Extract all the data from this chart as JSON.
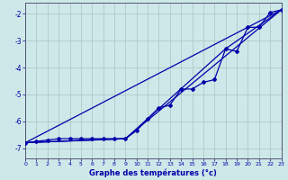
{
  "title": "",
  "xlabel": "Graphe des températures (°c)",
  "ylabel": "",
  "bg_color": "#cce8e8",
  "grid_color": "#b0c8c8",
  "line_color": "#0000aa",
  "xlim": [
    0,
    23
  ],
  "ylim": [
    -7.4,
    -1.6
  ],
  "yticks": [
    -7,
    -6,
    -5,
    -4,
    -3,
    -2
  ],
  "xticks": [
    0,
    1,
    2,
    3,
    4,
    5,
    6,
    7,
    8,
    9,
    10,
    11,
    12,
    13,
    14,
    15,
    16,
    17,
    18,
    19,
    20,
    21,
    22,
    23
  ],
  "line1_x": [
    0,
    1,
    2,
    3,
    4,
    5,
    6,
    7,
    8,
    9,
    10,
    11,
    12,
    13,
    14,
    15,
    16,
    17,
    18,
    19,
    20,
    21,
    22,
    23
  ],
  "line1_y": [
    -6.8,
    -6.75,
    -6.7,
    -6.65,
    -6.65,
    -6.65,
    -6.65,
    -6.65,
    -6.65,
    -6.65,
    -6.35,
    -5.9,
    -5.5,
    -5.4,
    -4.8,
    -4.8,
    -4.55,
    -4.45,
    -3.3,
    -3.4,
    -2.5,
    -2.5,
    -1.95,
    -1.85
  ],
  "line2_x": [
    0,
    23
  ],
  "line2_y": [
    -6.8,
    -1.85
  ],
  "line3_x": [
    0,
    9,
    23
  ],
  "line3_y": [
    -6.8,
    -6.65,
    -1.85
  ],
  "line4_x": [
    0,
    9,
    18,
    23
  ],
  "line4_y": [
    -6.8,
    -6.65,
    -3.3,
    -1.85
  ]
}
